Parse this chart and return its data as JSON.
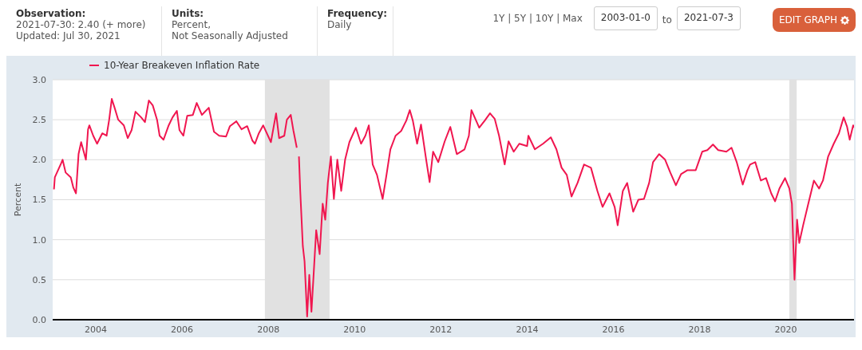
{
  "chart_data": {
    "type": "line",
    "annotations": [
      "Observation:",
      "2021-07-30: 2.40 (+ more)",
      "Updated: Jul 30, 2021",
      "Units:",
      "Percent,",
      "Not Seasonally Adjusted",
      "Frequency:",
      "Daily",
      "1Y | 5Y | 10Y | Max",
      "2003-01-0",
      "to",
      "2021-07-3",
      "EDIT GRAPH"
    ],
    "ylabel": "Percent",
    "x": [
      2003.03,
      2003.05,
      2003.1,
      2003.2,
      2003.23,
      2003.3,
      2003.42,
      2003.48,
      2003.54,
      2003.6,
      2003.66,
      2003.72,
      2003.77,
      2003.82,
      2003.85,
      2003.94,
      2004.03,
      2004.15,
      2004.25,
      2004.31,
      2004.37,
      2004.43,
      2004.52,
      2004.65,
      2004.74,
      2004.83,
      2004.92,
      2005.05,
      2005.14,
      2005.23,
      2005.32,
      2005.42,
      2005.48,
      2005.57,
      2005.69,
      2005.78,
      2005.88,
      2005.94,
      2006.03,
      2006.12,
      2006.25,
      2006.34,
      2006.46,
      2006.62,
      2006.74,
      2006.86,
      2007.02,
      2007.11,
      2007.26,
      2007.38,
      2007.51,
      2007.63,
      2007.69,
      2007.78,
      2007.88,
      2008.06,
      2008.18,
      2008.25,
      2008.37,
      2008.43,
      2008.52,
      2008.58,
      2008.66,
      2008.67,
      2008.71,
      2008.74,
      2008.8,
      2008.84,
      2008.9,
      2008.95,
      2009.0,
      2009.05,
      2009.11,
      2009.19,
      2009.26,
      2009.32,
      2009.38,
      2009.45,
      2009.52,
      2009.6,
      2009.69,
      2009.78,
      2009.88,
      2010.03,
      2010.15,
      2010.25,
      2010.33,
      2010.42,
      2010.52,
      2010.65,
      2010.74,
      2010.83,
      2010.95,
      2011.08,
      2011.2,
      2011.28,
      2011.35,
      2011.45,
      2011.54,
      2011.66,
      2011.74,
      2011.82,
      2011.94,
      2012.09,
      2012.22,
      2012.37,
      2012.55,
      2012.65,
      2012.71,
      2012.8,
      2012.89,
      2013.02,
      2013.14,
      2013.25,
      2013.35,
      2013.48,
      2013.57,
      2013.69,
      2013.82,
      2014.0,
      2014.03,
      2014.18,
      2014.37,
      2014.55,
      2014.68,
      2014.8,
      2014.92,
      2015.03,
      2015.17,
      2015.32,
      2015.48,
      2015.63,
      2015.75,
      2015.91,
      2016.03,
      2016.1,
      2016.22,
      2016.32,
      2016.46,
      2016.58,
      2016.71,
      2016.83,
      2016.92,
      2017.06,
      2017.2,
      2017.32,
      2017.45,
      2017.57,
      2017.72,
      2017.91,
      2018.06,
      2018.18,
      2018.31,
      2018.43,
      2018.62,
      2018.74,
      2018.86,
      2019.0,
      2019.11,
      2019.17,
      2019.29,
      2019.42,
      2019.54,
      2019.66,
      2019.75,
      2019.85,
      2019.98,
      2020.08,
      2020.14,
      2020.2,
      2020.26,
      2020.31,
      2020.4,
      2020.52,
      2020.65,
      2020.77,
      2020.86,
      2020.98,
      2021.11,
      2021.23,
      2021.34,
      2021.42,
      2021.48,
      2021.56,
      2021.58
    ],
    "series": [
      {
        "name": "10-Year Breakeven Inflation Rate",
        "color": "#f0164f",
        "values": [
          1.63,
          1.78,
          1.84,
          1.96,
          2.0,
          1.84,
          1.78,
          1.65,
          1.58,
          2.07,
          2.22,
          2.1,
          2.0,
          2.38,
          2.43,
          2.3,
          2.2,
          2.33,
          2.3,
          2.5,
          2.76,
          2.66,
          2.5,
          2.43,
          2.27,
          2.37,
          2.6,
          2.53,
          2.47,
          2.74,
          2.68,
          2.5,
          2.3,
          2.25,
          2.43,
          2.53,
          2.61,
          2.37,
          2.3,
          2.55,
          2.56,
          2.71,
          2.56,
          2.65,
          2.35,
          2.3,
          2.29,
          2.42,
          2.48,
          2.38,
          2.42,
          2.24,
          2.2,
          2.33,
          2.43,
          2.22,
          2.58,
          2.27,
          2.3,
          2.5,
          2.56,
          2.37,
          2.15,
          null,
          2.04,
          1.61,
          0.92,
          0.73,
          0.04,
          0.56,
          0.1,
          0.56,
          1.12,
          0.82,
          1.45,
          1.25,
          1.71,
          2.04,
          1.51,
          2.0,
          1.61,
          2.0,
          2.22,
          2.4,
          2.2,
          2.3,
          2.43,
          1.94,
          1.81,
          1.51,
          1.81,
          2.13,
          2.3,
          2.36,
          2.49,
          2.62,
          2.49,
          2.2,
          2.44,
          2.0,
          1.72,
          2.1,
          1.97,
          2.23,
          2.41,
          2.07,
          2.13,
          2.3,
          2.62,
          2.51,
          2.4,
          2.49,
          2.58,
          2.51,
          2.3,
          1.94,
          2.23,
          2.1,
          2.2,
          2.17,
          2.3,
          2.13,
          2.2,
          2.28,
          2.13,
          1.9,
          1.81,
          1.54,
          1.71,
          1.94,
          1.9,
          1.61,
          1.41,
          1.58,
          1.41,
          1.18,
          1.61,
          1.71,
          1.35,
          1.5,
          1.51,
          1.71,
          1.97,
          2.07,
          2.0,
          1.84,
          1.68,
          1.82,
          1.87,
          1.87,
          2.1,
          2.12,
          2.19,
          2.12,
          2.1,
          2.15,
          1.97,
          1.69,
          1.87,
          1.94,
          1.97,
          1.74,
          1.77,
          1.58,
          1.48,
          1.64,
          1.77,
          1.64,
          1.45,
          0.5,
          1.25,
          0.96,
          1.18,
          1.45,
          1.74,
          1.64,
          1.74,
          2.04,
          2.2,
          2.33,
          2.53,
          2.41,
          2.25,
          2.43,
          2.4
        ]
      }
    ],
    "xlim": [
      2003.0,
      2021.58
    ],
    "xticks": [
      2004,
      2006,
      2008,
      2010,
      2012,
      2014,
      2016,
      2018,
      2020
    ],
    "ylim": [
      0,
      3
    ],
    "yticks": [
      {
        "value": 0,
        "label": "0.0"
      },
      {
        "value": 0.5,
        "label": "0.5"
      },
      {
        "value": 1,
        "label": "1.0"
      },
      {
        "value": 1.5,
        "label": "1.5"
      },
      {
        "value": 2,
        "label": "2.0"
      },
      {
        "value": 2.5,
        "label": "2.5"
      },
      {
        "value": 3,
        "label": "3.0"
      }
    ],
    "bands": [
      {
        "axis": "x",
        "from": 2007.92,
        "to": 2009.42,
        "color": "#e1e1e1"
      },
      {
        "axis": "x",
        "from": 2020.08,
        "to": 2020.25,
        "color": "#e1e1e1"
      }
    ],
    "grid": "y",
    "legend": "top left",
    "marker": "none",
    "line_style": "solid"
  }
}
